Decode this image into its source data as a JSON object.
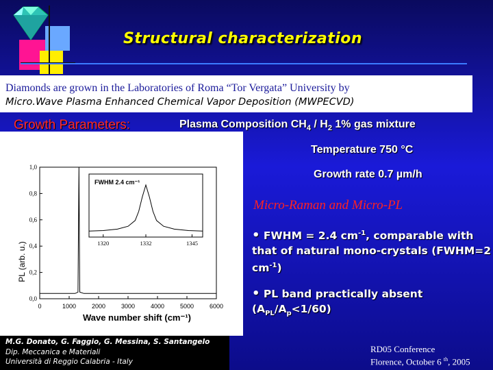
{
  "title": "Structural characterization",
  "intro": {
    "line1": "Diamonds are grown in the Laboratories  of  Roma “Tor Vergata” University by",
    "line2": "Micro.Wave Plasma Enhanced Chemical Vapor Deposition (MWPECVD)"
  },
  "growth": {
    "label": "Growth Parameters:",
    "plasma_prefix": "Plasma Composition CH",
    "plasma_sub1": "4",
    "plasma_mid": " / H",
    "plasma_sub2": "2",
    "plasma_suffix": "  1% gas mixture",
    "temperature": "Temperature 750 °C",
    "rate": "Growth rate   0.7 µm/h"
  },
  "chart_data": {
    "type": "line",
    "title": "",
    "xlabel": "Wave number shift (cm⁻¹)",
    "ylabel": "PL (arb. u.)",
    "x_ticks": [
      "0",
      "1000",
      "2000",
      "3000",
      "4000",
      "5000",
      "6000"
    ],
    "y_ticks": [
      "0,0",
      "0,2",
      "0,4",
      "0,6",
      "0,8",
      "1,0"
    ],
    "xlim": [
      0,
      6000
    ],
    "ylim": [
      0,
      1.0
    ],
    "series": [
      {
        "x": [
          0,
          600,
          1200,
          1300,
          1332,
          1360,
          1500,
          2000,
          3000,
          4000,
          5000,
          6000
        ],
        "y": [
          0.04,
          0.04,
          0.04,
          0.05,
          1.0,
          0.05,
          0.04,
          0.04,
          0.04,
          0.04,
          0.04,
          0.04
        ]
      }
    ],
    "inset": {
      "label": "FWHM 2.4 cm⁻¹",
      "x_ticks": [
        "1320",
        "1332",
        "1345"
      ],
      "x": [
        1316,
        1320,
        1324,
        1327,
        1329,
        1330,
        1331,
        1332,
        1333,
        1334,
        1335,
        1337,
        1340,
        1344,
        1348
      ],
      "y": [
        0.04,
        0.05,
        0.08,
        0.14,
        0.26,
        0.45,
        0.75,
        1.0,
        0.75,
        0.45,
        0.26,
        0.14,
        0.08,
        0.05,
        0.04
      ]
    }
  },
  "raman": {
    "heading": "Micro-Raman and Micro-PL",
    "bullet1_a": "FWHM = 2.4 cm",
    "bullet1_sup": "-1",
    "bullet1_b": ", comparable with that of natural mono-crystals (FWHM=2 cm",
    "bullet1_sup2": "-1",
    "bullet1_c": ")",
    "bullet2_a": "PL band practically absent (A",
    "bullet2_sub1": "PL",
    "bullet2_mid": "/A",
    "bullet2_sub2": "p",
    "bullet2_c": "<1/60)"
  },
  "authors": {
    "names": "M.G. Donato, G. Faggio, G. Messina, S. Santangelo",
    "dept": "Dip. Meccanica e Materiali",
    "univ": "Università di Reggio Calabria - Italy"
  },
  "conference": {
    "line1": "RD05 Conference",
    "line2_a": "Florence, October 6 ",
    "line2_sup": "th",
    "line2_b": ", 2005"
  }
}
